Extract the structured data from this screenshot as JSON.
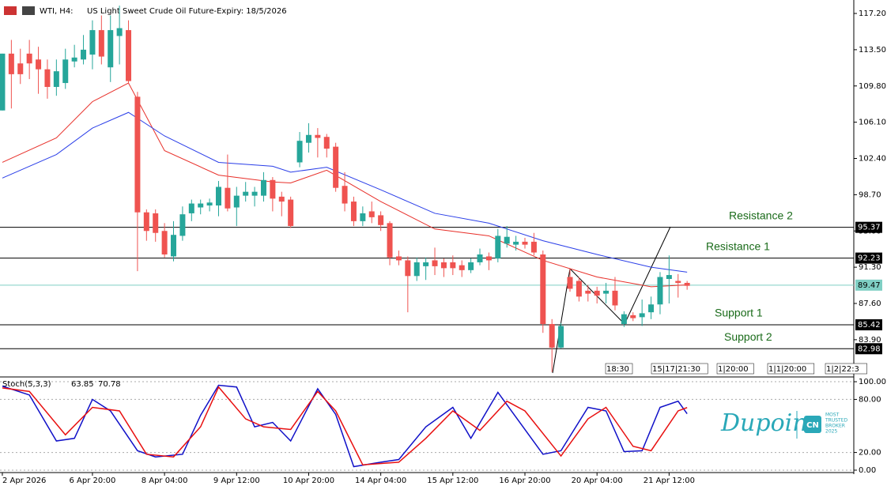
{
  "header": {
    "symbol": "WTI, H4:",
    "description": "US Light Sweet Crude Oil Future-Expiry: 18/5/2026"
  },
  "chart_data": [
    {
      "type": "candlestick",
      "xlim": [
        -0.26,
        94.5
      ],
      "ylim": [
        80.26,
        118.17
      ],
      "xticks": [
        {
          "value": 0,
          "label": "2 Apr 2026"
        },
        {
          "value": 10,
          "label": "6 Apr 20:00"
        },
        {
          "value": 18,
          "label": "8 Apr 04:00"
        },
        {
          "value": 26,
          "label": "9 Apr 12:00"
        },
        {
          "value": 34,
          "label": "10 Apr 20:00"
        },
        {
          "value": 42,
          "label": "14 Apr 04:00"
        },
        {
          "value": 50,
          "label": "15 Apr 12:00"
        },
        {
          "value": 58,
          "label": "16 Apr 20:00"
        },
        {
          "value": 66,
          "label": "20 Apr 04:00"
        },
        {
          "value": 74,
          "label": "21 Apr 12:00"
        }
      ],
      "yticks": [
        {
          "value": 117.2,
          "label": "117.20"
        },
        {
          "value": 113.5,
          "label": "113.50"
        },
        {
          "value": 109.8,
          "label": "109.80"
        },
        {
          "value": 106.1,
          "label": "106.10"
        },
        {
          "value": 102.4,
          "label": "102.40"
        },
        {
          "value": 98.7,
          "label": "98.70"
        },
        {
          "value": 95,
          "label": "95.00"
        },
        {
          "value": 91.3,
          "label": "91.30"
        },
        {
          "value": 87.6,
          "label": "87.60"
        },
        {
          "value": 83.9,
          "label": "83.90"
        }
      ],
      "up_color": "#26a69a",
      "down_color": "#ef5350",
      "open": [
        107.3,
        113.1,
        112.1,
        113.1,
        112.5,
        111.5,
        109.7,
        110.1,
        112.3,
        112.5,
        113,
        115.5,
        111.7,
        114.9,
        115.5,
        108.7,
        96.9,
        96.8,
        95.0,
        92.4,
        94.5,
        96.8,
        97.4,
        97.6,
        97.6,
        99.4,
        97.4,
        98.6,
        98.6,
        98.6,
        100.2,
        98.5,
        98.2,
        102.0,
        104.0,
        104.8,
        104.6,
        103.6,
        99.6,
        98,
        96,
        97,
        96.6,
        95.8,
        92.4,
        92,
        90.4,
        91.4,
        92,
        91.8,
        91.8,
        91.5,
        91,
        91.8,
        92.4,
        92.2,
        93.7,
        93.6,
        93.9,
        93.9,
        92.6,
        85.5,
        83.1,
        90.3,
        89.9,
        88.9,
        88.9,
        88.6,
        88.9,
        85.5,
        86.4,
        86.2,
        86.7,
        87.5,
        90.1,
        89.9,
        89.7
      ],
      "high": [
        113.1,
        114.5,
        113.6,
        114.5,
        113.8,
        112.5,
        112.5,
        113.6,
        114,
        115,
        116.5,
        117,
        117,
        118,
        116.5,
        109.2,
        97.2,
        97.2,
        95.8,
        96,
        97.5,
        98.2,
        98.2,
        98.3,
        100.1,
        102.8,
        99.5,
        100,
        99.5,
        101,
        100.5,
        99,
        98.5,
        105.1,
        106,
        105.5,
        104.9,
        104,
        101,
        98.5,
        97.5,
        98,
        97,
        96,
        93,
        92.4,
        92.3,
        92.3,
        93.3,
        92.2,
        92.5,
        92,
        92.2,
        93.2,
        92.8,
        95.2,
        95.5,
        94.5,
        94.3,
        94.8,
        93,
        86,
        85.6,
        91.2,
        90.3,
        89.5,
        89.3,
        89.7,
        90.3,
        86.8,
        86.7,
        88,
        88.3,
        90.8,
        92.5,
        90.6,
        89.9
      ],
      "low": [
        107.3,
        107.5,
        110,
        110.5,
        109,
        108.5,
        108.8,
        109.5,
        111.7,
        112,
        111.5,
        112,
        110.2,
        112,
        110,
        90.9,
        94,
        93.9,
        92.3,
        91.9,
        94,
        96,
        96.7,
        97,
        96.5,
        97,
        95.5,
        98,
        97.5,
        98,
        97,
        96.5,
        95.3,
        101.5,
        103,
        102.5,
        102.5,
        99,
        97,
        95.5,
        95.5,
        95.8,
        95,
        91.5,
        91.5,
        86.7,
        89.9,
        90,
        90.5,
        90.3,
        90.5,
        90.3,
        90.7,
        91.5,
        91,
        91.8,
        93.3,
        93,
        93.2,
        92.5,
        84.6,
        80.6,
        83,
        88.8,
        87.8,
        87.8,
        87.6,
        87.6,
        86.9,
        85.2,
        85.8,
        85.3,
        86,
        86.5,
        87.6,
        88.2,
        89
      ],
      "close": [
        113.1,
        111.0,
        111.0,
        112.1,
        111.5,
        109.7,
        111.3,
        112.5,
        112.7,
        113.5,
        115.5,
        112.8,
        115.5,
        115.7,
        110.3,
        96.9,
        95.0,
        94.8,
        92.6,
        94.6,
        96.7,
        97.8,
        97.8,
        97.9,
        99.5,
        97.3,
        98.6,
        99.0,
        99.0,
        100.2,
        98.3,
        98.0,
        95.5,
        104.2,
        104.8,
        104.5,
        103.4,
        99.4,
        97.8,
        96.0,
        96.8,
        96.4,
        95.6,
        92.3,
        92.0,
        90.4,
        91.8,
        91.8,
        91.4,
        91.2,
        91.2,
        91.0,
        91.8,
        92.6,
        92.0,
        94.5,
        94.4,
        93.9,
        93.6,
        92.8,
        85.5,
        83.1,
        85.3,
        89.1,
        88.3,
        88.6,
        88.4,
        88.9,
        87.4,
        86.5,
        86.1,
        86.6,
        87.5,
        90.3,
        90.5,
        89.7,
        89.4
      ],
      "series": [
        {
          "color": "#e8302a",
          "x": [
            0,
            6,
            10,
            14,
            18,
            24,
            30,
            32,
            36,
            42,
            48,
            54,
            60,
            66,
            72,
            76
          ],
          "values": [
            102.0,
            104.5,
            108.2,
            110.1,
            103.2,
            100.7,
            100.0,
            99.9,
            101.2,
            98.0,
            95.2,
            94.5,
            92.0,
            90.3,
            89.3,
            89.5
          ]
        },
        {
          "color": "#2a3ee8",
          "x": [
            0,
            6,
            10,
            14,
            18,
            24,
            30,
            32,
            36,
            42,
            48,
            54,
            60,
            66,
            72,
            76
          ],
          "values": [
            100.4,
            102.8,
            105.5,
            107.1,
            104.7,
            102.0,
            101.6,
            101.0,
            101.5,
            99.2,
            96.8,
            95.8,
            94.0,
            92.6,
            91.3,
            90.8
          ]
        }
      ],
      "levels": [
        {
          "name": "Resistance 2",
          "value": 95.37,
          "color": "#000000"
        },
        {
          "name": "Resistance 1",
          "value": 92.23,
          "color": "#000000"
        },
        {
          "value": 89.47,
          "color": "#7fcfc4"
        },
        {
          "name": "Support 1",
          "value": 85.42,
          "color": "#000000"
        },
        {
          "name": "Support 2",
          "value": 82.98,
          "color": "#000000"
        }
      ],
      "markers": [
        "18:30",
        "15|17|21:30",
        "1|20:00",
        "1|1|20:00",
        "1|2|22:3"
      ]
    },
    {
      "type": "line",
      "name": "Stoch(5,3,3)",
      "xlim": [
        -0.26,
        94.5
      ],
      "ylim": [
        -2.7,
        104.5
      ],
      "yticks": [
        {
          "value": 100,
          "label": "100.00"
        },
        {
          "value": 80,
          "label": "80.00"
        },
        {
          "value": 20,
          "label": "20.00"
        },
        {
          "value": 0,
          "label": "0.00"
        }
      ],
      "series": [
        {
          "color": "#1010c8",
          "x": [
            0,
            3,
            6,
            8,
            10,
            12,
            15,
            17,
            20,
            22,
            24,
            26,
            28,
            30,
            32,
            35,
            37,
            39,
            42,
            44,
            47,
            50,
            52,
            55,
            57,
            60,
            62,
            65,
            67,
            69,
            71,
            73,
            75,
            76
          ],
          "values": [
            95,
            85,
            33,
            36,
            80,
            67,
            22,
            15,
            18,
            62,
            96,
            94,
            49,
            54,
            33,
            92,
            63,
            4,
            9,
            12,
            49,
            71,
            36,
            88,
            60,
            18,
            22,
            71,
            67,
            21,
            22,
            71,
            78,
            63.85
          ]
        },
        {
          "color": "#e81010",
          "x": [
            0,
            3,
            7,
            10,
            13,
            16,
            19,
            22,
            24,
            27,
            29,
            32,
            35,
            37,
            40,
            44,
            47,
            50,
            53,
            56,
            58,
            62,
            65,
            67,
            70,
            72,
            75,
            76
          ],
          "values": [
            93,
            89,
            40,
            71,
            67,
            18,
            15,
            49,
            94,
            58,
            49,
            46,
            89,
            67,
            6,
            9,
            36,
            67,
            45,
            78,
            67,
            16,
            58,
            71,
            27,
            22,
            67,
            70.78
          ]
        }
      ]
    }
  ],
  "logo": {
    "brand": "Dupoin",
    "badge": "CN",
    "award": [
      "MOST",
      "TRUSTED",
      "BROKER",
      "2025"
    ]
  }
}
